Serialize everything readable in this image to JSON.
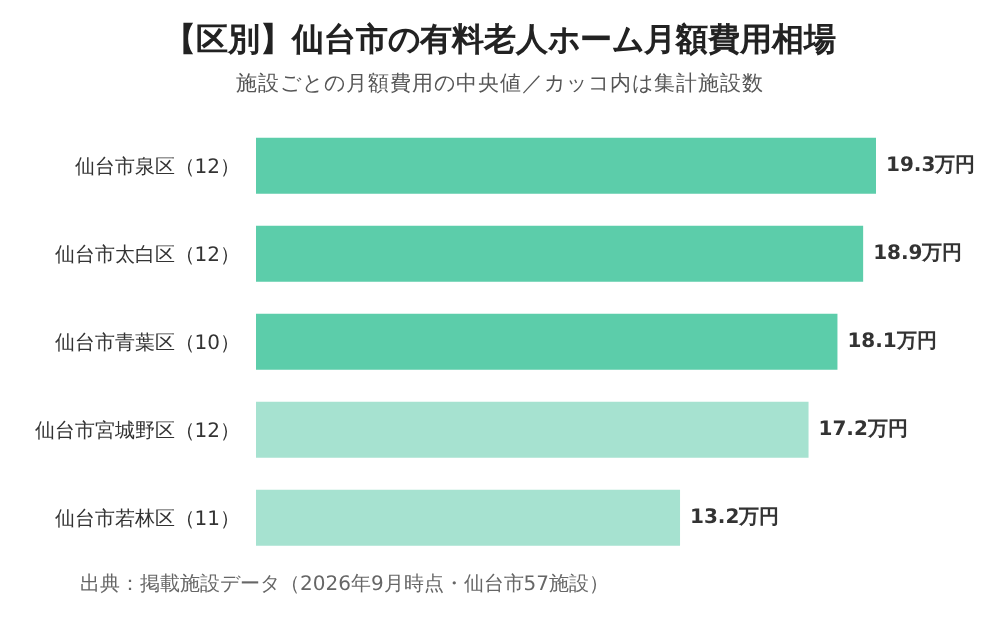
{
  "chart_data": {
    "type": "bar",
    "orientation": "horizontal",
    "title": "【区別】仙台市の有料老人ホーム月額費用相場",
    "subtitle": "施設ごとの月額費用の中央値／カッコ内は集計施設数",
    "categories": [
      "仙台市泉区（12）",
      "仙台市太白区（12）",
      "仙台市青葉区（10）",
      "仙台市宮城野区（12）",
      "仙台市若林区（11）"
    ],
    "values": [
      19.3,
      18.9,
      18.1,
      17.2,
      13.2
    ],
    "colors": [
      "#5ccdaa",
      "#5ccdaa",
      "#5ccdaa",
      "#a6e2d0",
      "#a6e2d0"
    ],
    "value_labels": [
      "19.3万円",
      "18.9万円",
      "18.1万円",
      "17.2万円",
      "13.2万円"
    ],
    "annotations": [
      "出典：掲載施設データ（2026年9月時点・仙台市57施設）"
    ],
    "grid": false,
    "legend": false
  }
}
